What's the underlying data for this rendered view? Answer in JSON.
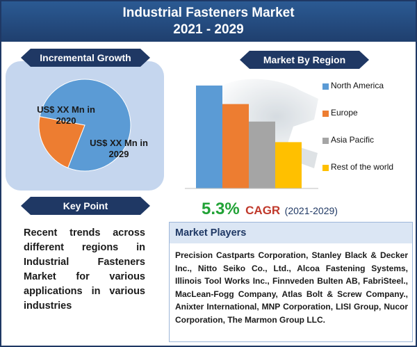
{
  "header": {
    "title_line1": "Industrial Fasteners Market",
    "title_line2": "2021 - 2029"
  },
  "sections": {
    "incremental_growth": "Incremental Growth",
    "market_by_region": "Market By Region",
    "key_point": "Key Point",
    "market_players": "Market Players"
  },
  "pie": {
    "label_2020": "US$ XX Mn in 2020",
    "label_2029": "US$ XX Mn in 2029"
  },
  "cagr": {
    "value": "5.3%",
    "word": "CAGR",
    "period": "(2021-2029)"
  },
  "key_point_text": "Recent trends across different regions in Industrial Fasteners Market for various applications in various industries",
  "market_players_text": "Precision Castparts Corporation, Stanley Black & Decker Inc., Nitto Seiko Co., Ltd., Alcoa Fastening Systems, Illinois Tool Works Inc., Finnveden Bulten AB, FabriSteel., MacLean-Fogg Company, Atlas Bolt & Screw Company., Anixter International, MNP Corporation, LISI Group, Nucor Corporation, The Marmon Group LLC.",
  "colors": {
    "header": "#1f3864",
    "pie_2029": "#5b9bd5",
    "pie_2020": "#ed7d31",
    "cagr_value": "#21a236",
    "cagr_word": "#c0392b"
  },
  "chart_data": [
    {
      "type": "pie",
      "title": "Incremental Growth",
      "slices": [
        {
          "label": "US$ XX Mn in 2029",
          "value": 78,
          "color": "#5b9bd5"
        },
        {
          "label": "US$ XX Mn in 2020",
          "value": 22,
          "color": "#ed7d31"
        }
      ]
    },
    {
      "type": "bar",
      "title": "Market By Region",
      "categories": [
        "North America",
        "Europe",
        "Asia Pacific",
        "Rest of the world"
      ],
      "values": [
        100,
        82,
        65,
        45
      ],
      "colors": [
        "#5b9bd5",
        "#ed7d31",
        "#a5a5a5",
        "#ffc000"
      ],
      "ylim": [
        0,
        100
      ],
      "legend": "right"
    }
  ]
}
